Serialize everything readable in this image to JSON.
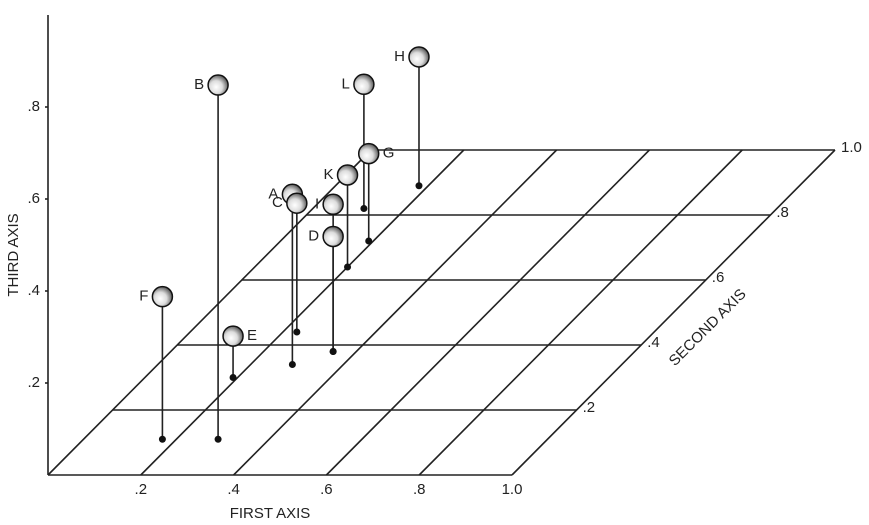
{
  "chart_data": {
    "type": "scatter3d",
    "x_label": "FIRST AXIS",
    "y_label": "SECOND AXIS",
    "z_label": "THIRD AXIS",
    "labels": [
      "A",
      "B",
      "C",
      "D",
      "E",
      "F",
      "G",
      "H",
      "I",
      "K",
      "L"
    ],
    "x": [
      0.29,
      0.29,
      0.23,
      0.35,
      0.19,
      0.17,
      0.19,
      0.18,
      0.35,
      0.2,
      0.11
    ],
    "y": [
      0.34,
      0.11,
      0.44,
      0.38,
      0.3,
      0.11,
      0.72,
      0.89,
      0.38,
      0.64,
      0.82
    ],
    "z": [
      0.37,
      0.77,
      0.28,
      0.25,
      0.09,
      0.31,
      0.19,
      0.28,
      0.32,
      0.2,
      0.27
    ],
    "xlim": [
      0,
      1
    ],
    "ylim": [
      0,
      1
    ],
    "zlim": [
      0,
      1
    ],
    "xticks": [
      {
        "value": 0.2,
        "label": ".2"
      },
      {
        "value": 0.4,
        "label": ".4"
      },
      {
        "value": 0.6,
        "label": ".6"
      },
      {
        "value": 0.8,
        "label": ".8"
      },
      {
        "value": 1.0,
        "label": "1.0"
      }
    ],
    "yticks": [
      {
        "value": 0.2,
        "label": ".2"
      },
      {
        "value": 0.4,
        "label": ".4"
      },
      {
        "value": 0.6,
        "label": ".6"
      },
      {
        "value": 0.8,
        "label": ".8"
      },
      {
        "value": 1.0,
        "label": "1.0"
      }
    ],
    "zticks": [
      {
        "value": 0.2,
        "label": ".2"
      },
      {
        "value": 0.4,
        "label": ".4"
      },
      {
        "value": 0.6,
        "label": ".6"
      },
      {
        "value": 0.8,
        "label": ".8"
      }
    ],
    "grid": true
  }
}
